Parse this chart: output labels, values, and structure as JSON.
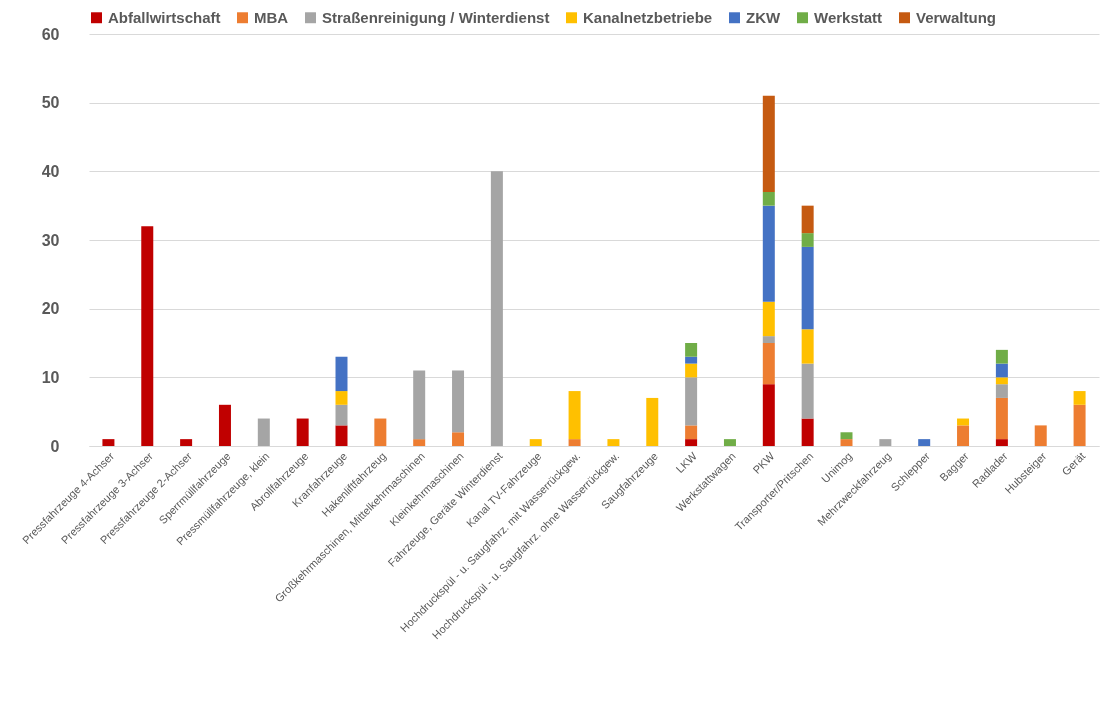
{
  "chart_data": {
    "type": "bar",
    "stacked": true,
    "categories": [
      "Pressfahrzeuge 4-Achser",
      "Pressfahrzeuge 3-Achser",
      "Pressfahrzeuge 2-Achser",
      "Sperrmüllfahrzeuge",
      "Pressmüllfahrzeuge, klein",
      "Abrollfahrzeuge",
      "Kranfahrzeuge",
      "Hakenliftfahrzeug",
      "Großkehrmaschinen, Mittelkehrmaschinen",
      "Kleinkehrmaschinen",
      "Fahrzeuge, Geräte Winterdienst",
      "Kanal TV-Fahrzeuge",
      "Hochdruckspül - u. Saugfahrz. mit Wasserrückgew.",
      "Hochdruckspül - u. Saugfahrz. ohne Wasserrückgew.",
      "Saugfahrzeuge",
      "LKW",
      "Werkstattwagen",
      "PKW",
      "Transporter/Pritschen",
      "Unimog",
      "Mehrzweckfahrzeug",
      "Schlepper",
      "Bagger",
      "Radlader",
      "Hubsteiger",
      "Gerät"
    ],
    "series": [
      {
        "name": "Abfallwirtschaft",
        "color": "#c00000",
        "values": [
          1,
          32,
          1,
          6,
          null,
          4,
          3,
          null,
          null,
          null,
          null,
          null,
          null,
          null,
          null,
          1,
          null,
          9,
          4,
          null,
          null,
          null,
          null,
          1,
          null,
          null
        ]
      },
      {
        "name": "MBA",
        "color": "#ed7d31",
        "values": [
          null,
          null,
          null,
          null,
          null,
          null,
          null,
          4,
          1,
          2,
          null,
          null,
          1,
          null,
          null,
          2,
          null,
          6,
          null,
          1,
          null,
          null,
          3,
          6,
          3,
          6
        ]
      },
      {
        "name": "Straßenreinigung / Winterdienst",
        "color": "#a5a5a5",
        "values": [
          null,
          null,
          null,
          null,
          4,
          null,
          3,
          null,
          10,
          9,
          40,
          null,
          null,
          null,
          null,
          7,
          null,
          1,
          8,
          null,
          1,
          null,
          null,
          2,
          null,
          null
        ]
      },
      {
        "name": "Kanalnetzbetriebe",
        "color": "#ffc000",
        "values": [
          null,
          null,
          null,
          null,
          null,
          null,
          2,
          null,
          null,
          null,
          null,
          1,
          7,
          1,
          7,
          2,
          null,
          5,
          5,
          null,
          null,
          null,
          1,
          1,
          null,
          2
        ]
      },
      {
        "name": "ZKW",
        "color": "#4472c4",
        "values": [
          null,
          null,
          null,
          null,
          null,
          null,
          5,
          null,
          null,
          null,
          null,
          null,
          null,
          null,
          null,
          1,
          null,
          14,
          12,
          null,
          null,
          1,
          null,
          2,
          null,
          null
        ]
      },
      {
        "name": "Werkstatt",
        "color": "#70ad47",
        "values": [
          null,
          null,
          null,
          null,
          null,
          null,
          null,
          null,
          null,
          null,
          null,
          null,
          null,
          null,
          null,
          2,
          1,
          2,
          2,
          1,
          null,
          null,
          null,
          2,
          null,
          null
        ]
      },
      {
        "name": "Verwaltung",
        "color": "#c55a11",
        "values": [
          null,
          null,
          null,
          null,
          null,
          null,
          null,
          null,
          null,
          null,
          null,
          null,
          null,
          null,
          null,
          null,
          null,
          14,
          4,
          null,
          null,
          null,
          null,
          null,
          null,
          null
        ]
      }
    ],
    "ylim": [
      0,
      60
    ],
    "yticks": [
      0,
      10,
      20,
      30,
      40,
      50,
      60
    ],
    "grid": "y",
    "legend": "top"
  }
}
